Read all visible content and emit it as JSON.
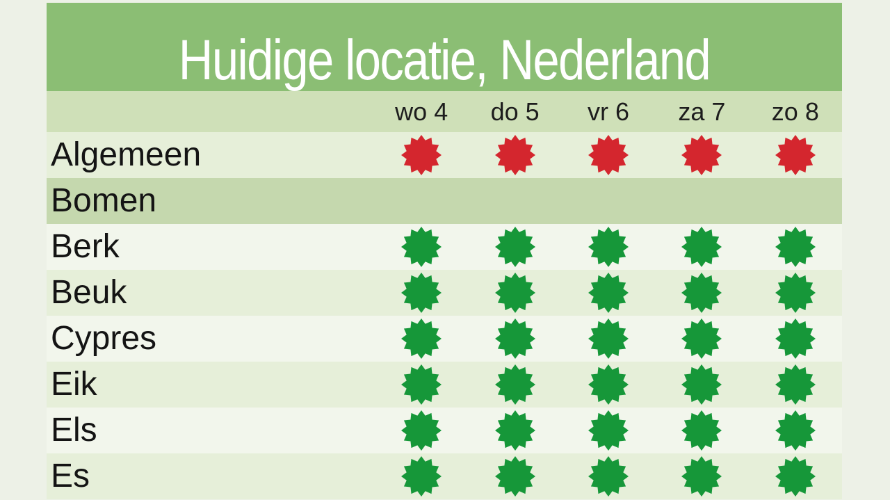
{
  "title": "Huidige locatie, Nederland",
  "colors": {
    "red": "#d4262e",
    "green": "#169739",
    "title_band": "#8bbe74",
    "header_band": "#cfe0b8",
    "section_band": "#c5d8ae"
  },
  "table": {
    "day_headers": [
      "wo 4",
      "do 5",
      "vr 6",
      "za 7",
      "zo 8"
    ],
    "rows": [
      {
        "label": "Algemeen",
        "type": "data",
        "icons": [
          "red",
          "red",
          "red",
          "red",
          "red"
        ]
      },
      {
        "label": "Bomen",
        "type": "section",
        "icons": []
      },
      {
        "label": "Berk",
        "type": "data",
        "icons": [
          "green",
          "green",
          "green",
          "green",
          "green"
        ]
      },
      {
        "label": "Beuk",
        "type": "data",
        "icons": [
          "green",
          "green",
          "green",
          "green",
          "green"
        ]
      },
      {
        "label": "Cypres",
        "type": "data",
        "icons": [
          "green",
          "green",
          "green",
          "green",
          "green"
        ]
      },
      {
        "label": "Eik",
        "type": "data",
        "icons": [
          "green",
          "green",
          "green",
          "green",
          "green"
        ]
      },
      {
        "label": "Els",
        "type": "data",
        "icons": [
          "green",
          "green",
          "green",
          "green",
          "green"
        ]
      },
      {
        "label": "Es",
        "type": "data",
        "icons": [
          "green",
          "green",
          "green",
          "green",
          "green"
        ]
      }
    ]
  }
}
